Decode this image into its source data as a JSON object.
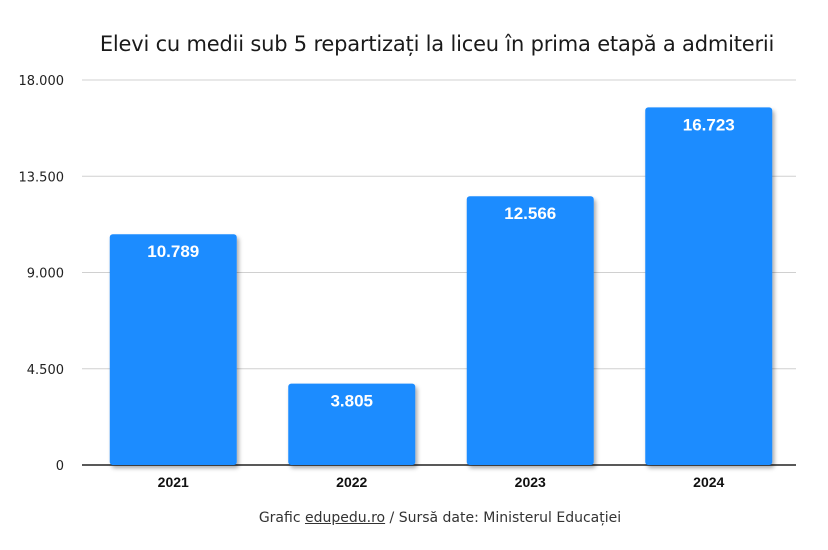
{
  "chart_data": {
    "type": "bar",
    "title": "Elevi cu medii sub 5 repartizați la liceu în prima etapă a admiterii",
    "categories": [
      "2021",
      "2022",
      "2023",
      "2024"
    ],
    "values": [
      10789,
      3805,
      12566,
      16723
    ],
    "value_labels": [
      "10.789",
      "3.805",
      "12.566",
      "16.723"
    ],
    "ylim": [
      0,
      18000
    ],
    "yticks": [
      0,
      4500,
      9000,
      13500,
      18000
    ],
    "ytick_labels": [
      "0",
      "4.500",
      "9.000",
      "13.500",
      "18.000"
    ],
    "xlabel": "",
    "ylabel": "",
    "grid": true,
    "legend": "none",
    "bar_color": "#1e8cff",
    "label_color": "#ffffff"
  },
  "footer": {
    "prefix": "Grafic ",
    "link": "edupedu.ro",
    "suffix": " / Sursă date: Ministerul Educației"
  }
}
